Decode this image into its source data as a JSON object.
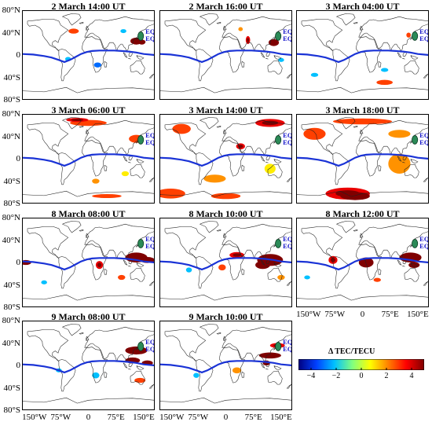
{
  "chart_data": {
    "type": "heatmap",
    "panels": [
      {
        "title": "2 March 14:00 UT"
      },
      {
        "title": "2 March 16:00 UT"
      },
      {
        "title": "3 March 04:00 UT"
      },
      {
        "title": "3 March 06:00 UT"
      },
      {
        "title": "3 March 14:00 UT"
      },
      {
        "title": "3 March 18:00 UT"
      },
      {
        "title": "8 March 08:00 UT"
      },
      {
        "title": "8 March 10:00 UT"
      },
      {
        "title": "8 March 12:00 UT"
      },
      {
        "title": "9 March 08:00 UT"
      },
      {
        "title": "9 March 10:00 UT"
      }
    ],
    "y_ticks": [
      "80°N",
      "40°N",
      "0",
      "40°S",
      "80°S"
    ],
    "x_ticks": [
      "150°W",
      "75°W",
      "0",
      "75°E",
      "150°E"
    ],
    "markers": [
      "EQ1",
      "EQ2"
    ],
    "colorbar": {
      "title": "Δ TEC/TECU",
      "ticks": [
        "−4",
        "−2",
        "0",
        "2",
        "4"
      ],
      "range": [
        -5,
        5
      ],
      "colors": [
        "#00007f",
        "#0040ff",
        "#00c0ff",
        "#80ff80",
        "#ffff00",
        "#ff8000",
        "#ff0000",
        "#7f0000"
      ]
    },
    "axis_range": {
      "lon": [
        -180,
        180
      ],
      "lat": [
        -90,
        90
      ]
    },
    "colors": {
      "equator_line": "#1a33d6",
      "marker_fill": "#2b8a57",
      "marker_text": "#1a1acc"
    }
  }
}
